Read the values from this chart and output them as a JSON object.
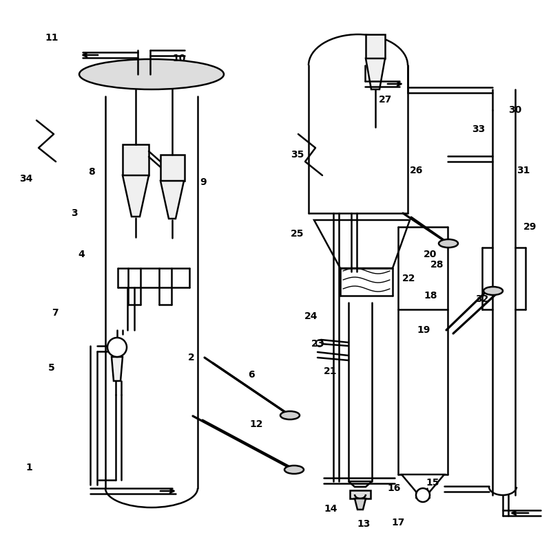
{
  "bg_color": "#ffffff",
  "lc": "#000000",
  "lw": 1.8,
  "fig_w": 8.0,
  "fig_h": 7.94
}
